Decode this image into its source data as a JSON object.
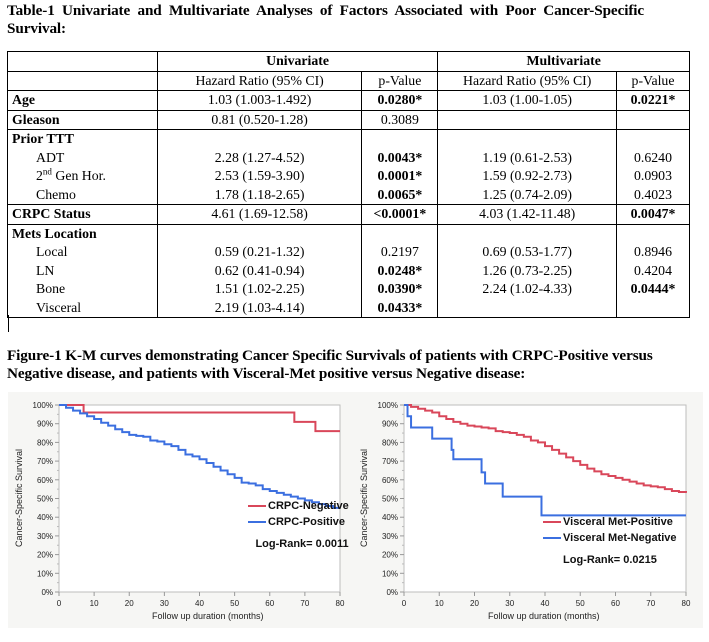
{
  "table_title": "Table-1 Univariate and Multivariate Analyses of Factors Associated with Poor Cancer-Specific Survival:",
  "table": {
    "group_headers": [
      "Univariate",
      "Multivariate"
    ],
    "column_headers": [
      "Hazard Ratio (95% CI)",
      "p-Value",
      "Hazard Ratio (95% CI)",
      "p-Value"
    ],
    "rows": {
      "age": {
        "label": "Age",
        "uni_hr": "1.03 (1.003-1.492)",
        "uni_p": "0.0280*",
        "multi_hr": "1.03 (1.00-1.05)",
        "multi_p": "0.0221*"
      },
      "gleason": {
        "label": "Gleason",
        "uni_hr": "0.81 (0.520-1.28)",
        "uni_p": "0.3089",
        "multi_hr": "",
        "multi_p": ""
      },
      "prior_ttt": {
        "label": "Prior TTT",
        "sub": [
          {
            "label": "ADT",
            "uni_hr": "2.28 (1.27-4.52)",
            "uni_p": "0.0043*",
            "multi_hr": "1.19 (0.61-2.53)",
            "multi_p": "0.6240"
          },
          {
            "label_sup": "nd",
            "label_pre": "2",
            "label_post": " Gen Hor.",
            "uni_hr": "2.53 (1.59-3.90)",
            "uni_p": "0.0001*",
            "multi_hr": "1.59 (0.92-2.73)",
            "multi_p": "0.0903"
          },
          {
            "label": "Chemo",
            "uni_hr": "1.78 (1.18-2.65)",
            "uni_p": "0.0065*",
            "multi_hr": "1.25 (0.74-2.09)",
            "multi_p": "0.4023"
          }
        ]
      },
      "crpc": {
        "label": "CRPC Status",
        "uni_hr": "4.61 (1.69-12.58)",
        "uni_p": "<0.0001*",
        "multi_hr": "4.03 (1.42-11.48)",
        "multi_p": "0.0047*"
      },
      "mets": {
        "label": "Mets Location",
        "sub": [
          {
            "label": "Local",
            "uni_hr": "0.59 (0.21-1.32)",
            "uni_p": "0.2197",
            "multi_hr": "",
            "multi_p": ""
          },
          {
            "label": "LN",
            "uni_hr": "0.62 (0.41-0.94)",
            "uni_p": "0.0248*",
            "multi_hr": "0.69 (0.53-1.77)",
            "multi_p": "0.8946"
          },
          {
            "label": "Bone",
            "uni_hr": "1.51 (1.02-2.25)",
            "uni_p": "0.0390*",
            "multi_hr": "1.26 (0.73-2.25)",
            "multi_p": "0.4204"
          },
          {
            "label": "Visceral",
            "uni_hr": "2.19 (1.03-4.14)",
            "uni_p": "0.0433*",
            "multi_hr": "2.24 (1.02-4.33)",
            "multi_p": "0.0444*"
          }
        ]
      }
    }
  },
  "figure_title": "Figure-1 K-M curves demonstrating Cancer Specific Survivals of patients with CRPC-Positive versus Negative disease, and patients with Visceral-Met positive versus Negative disease:",
  "chart_data": [
    {
      "type": "line",
      "subtype": "kaplan-meier-step",
      "title": "",
      "xlabel": "Follow up duration (months)",
      "ylabel": "Cancer-Specific Survival",
      "xlim": [
        0,
        80
      ],
      "ylim": [
        0,
        100
      ],
      "x_ticks": [
        0,
        10,
        20,
        30,
        40,
        50,
        60,
        70,
        80
      ],
      "y_ticks": [
        "0%",
        "10%",
        "20%",
        "30%",
        "40%",
        "50%",
        "60%",
        "70%",
        "80%",
        "90%",
        "100%"
      ],
      "grid": false,
      "legend_position": "bottom-right",
      "annotation": "Log-Rank= 0.0011",
      "series": [
        {
          "name": "CRPC-Negative",
          "color": "#d9475a",
          "x": [
            0,
            7,
            67,
            73,
            80
          ],
          "y": [
            100,
            96,
            91,
            86,
            86
          ]
        },
        {
          "name": "CRPC-Positive",
          "color": "#3b6fe0",
          "x": [
            0,
            2,
            4,
            6,
            8,
            10,
            12,
            14,
            16,
            18,
            20,
            22,
            24,
            26,
            28,
            30,
            32,
            34,
            36,
            38,
            40,
            42,
            44,
            46,
            48,
            50,
            52,
            54,
            56,
            58,
            60,
            62,
            64,
            66,
            68,
            70,
            72,
            74,
            76,
            78,
            80
          ],
          "y": [
            100,
            98.5,
            97,
            95.5,
            94,
            92.5,
            90.5,
            89,
            87,
            85.5,
            84,
            83.5,
            83,
            81,
            80.5,
            79,
            78,
            76,
            73.5,
            72.5,
            71,
            69,
            67,
            65,
            63,
            61,
            58.5,
            58,
            57,
            55,
            54,
            53,
            52,
            51,
            50,
            49,
            48,
            47,
            46,
            45,
            45
          ]
        }
      ]
    },
    {
      "type": "line",
      "subtype": "kaplan-meier-step",
      "title": "",
      "xlabel": "Follow up duration (months)",
      "ylabel": "Cancer-Specific Survival",
      "xlim": [
        0,
        80
      ],
      "ylim": [
        0,
        100
      ],
      "x_ticks": [
        0,
        10,
        20,
        30,
        40,
        50,
        60,
        70,
        80
      ],
      "y_ticks": [
        "0%",
        "10%",
        "20%",
        "30%",
        "40%",
        "50%",
        "60%",
        "70%",
        "80%",
        "90%",
        "100%"
      ],
      "grid": false,
      "legend_position": "bottom-right",
      "annotation": "Log-Rank= 0.0215",
      "series": [
        {
          "name": "Visceral Met-Positive",
          "color": "#d9475a",
          "x": [
            0,
            2,
            4,
            6,
            8,
            10,
            12,
            14,
            16,
            18,
            20,
            22,
            24,
            26,
            28,
            30,
            32,
            34,
            36,
            38,
            40,
            42,
            44,
            46,
            48,
            50,
            52,
            54,
            56,
            58,
            60,
            62,
            64,
            66,
            68,
            70,
            72,
            74,
            76,
            78,
            80
          ],
          "y": [
            100,
            99,
            98,
            97,
            96,
            94,
            92.5,
            91,
            90,
            89,
            88.5,
            88,
            87.5,
            86,
            85.5,
            85,
            84,
            83,
            81,
            80,
            78,
            76,
            74,
            72,
            70,
            68,
            66,
            64.5,
            63,
            62,
            61,
            60,
            59,
            58,
            57,
            56.5,
            56,
            55,
            54,
            53.5,
            53
          ]
        },
        {
          "name": "Visceral Met-Negative",
          "color": "#3b6fe0",
          "x": [
            0,
            1,
            2,
            8,
            13.5,
            14,
            22,
            23,
            28,
            39,
            80
          ],
          "y": [
            100,
            94,
            88,
            82,
            76,
            71,
            64,
            58,
            51,
            41,
            41
          ]
        }
      ]
    }
  ]
}
